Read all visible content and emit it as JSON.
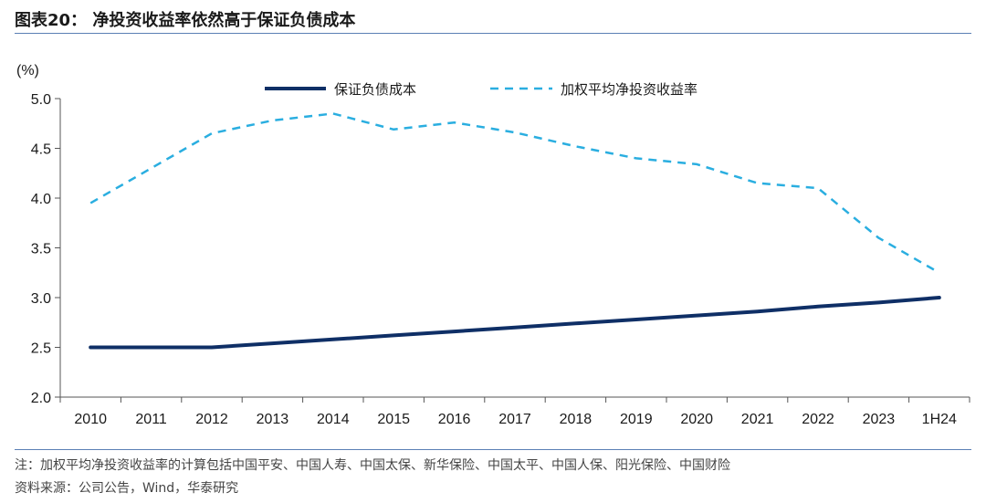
{
  "header": {
    "title": "图表20：  净投资收益率依然高于保证负债成本"
  },
  "footer": {
    "note": "注：加权平均净投资收益率的计算包括中国平安、中国人寿、中国太保、新华保险、中国太平、中国人保、阳光保险、中国财险",
    "source": "资料来源：公司公告，Wind，华泰研究"
  },
  "chart_data": {
    "type": "line",
    "title": "",
    "xlabel": "",
    "ylabel": "(%)",
    "ylim": [
      2.0,
      5.0
    ],
    "yticks": [
      2.0,
      2.5,
      3.0,
      3.5,
      4.0,
      4.5,
      5.0
    ],
    "categories": [
      "2010",
      "2011",
      "2012",
      "2013",
      "2014",
      "2015",
      "2016",
      "2017",
      "2018",
      "2019",
      "2020",
      "2021",
      "2022",
      "2023",
      "1H24"
    ],
    "legend_position": "top-center",
    "grid": false,
    "series": [
      {
        "name": "保证负债成本",
        "color": "#0f2f66",
        "style": "solid",
        "values": [
          2.5,
          2.5,
          2.5,
          2.54,
          2.58,
          2.62,
          2.66,
          2.7,
          2.74,
          2.78,
          2.82,
          2.86,
          2.91,
          2.95,
          3.0
        ]
      },
      {
        "name": "加权平均净投资收益率",
        "color": "#2aaee0",
        "style": "dashed",
        "values": [
          3.95,
          4.3,
          4.65,
          4.78,
          4.85,
          4.69,
          4.76,
          4.66,
          4.52,
          4.4,
          4.34,
          4.15,
          4.1,
          3.6,
          3.25
        ]
      }
    ]
  }
}
